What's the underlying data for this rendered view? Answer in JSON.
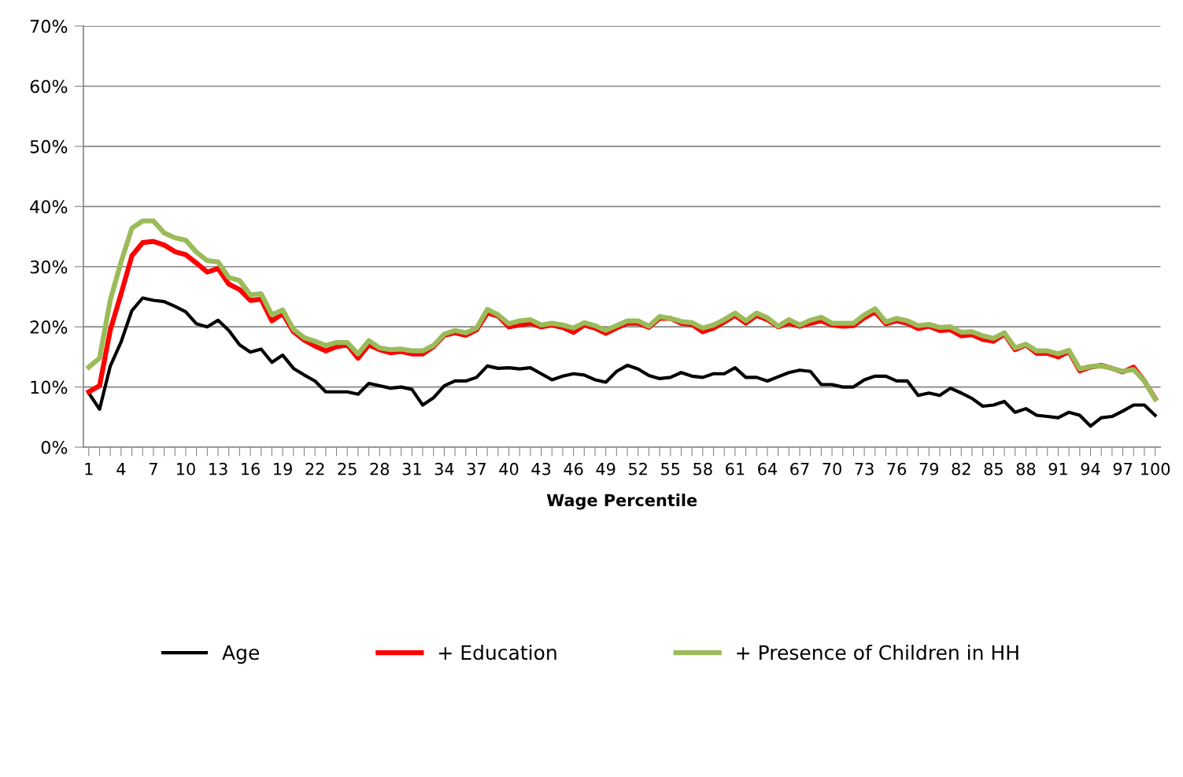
{
  "chart_data": {
    "type": "line",
    "xlabel": "Wage Percentile",
    "categories": [
      "1",
      null,
      null,
      "4",
      null,
      null,
      "7",
      null,
      null,
      "10",
      null,
      null,
      "13",
      null,
      null,
      "16",
      null,
      null,
      "19",
      null,
      null,
      "22",
      null,
      null,
      "25",
      null,
      null,
      "28",
      null,
      null,
      "31",
      null,
      null,
      "34",
      null,
      null,
      "37",
      null,
      null,
      "40",
      null,
      null,
      "43",
      null,
      null,
      "46",
      null,
      null,
      "49",
      null,
      null,
      "52",
      null,
      null,
      "55",
      null,
      null,
      "58",
      null,
      null,
      "61",
      null,
      null,
      "64",
      null,
      null,
      "67",
      null,
      null,
      "70",
      null,
      null,
      "73",
      null,
      null,
      "76",
      null,
      null,
      "79",
      null,
      null,
      "82",
      null,
      null,
      "85",
      null,
      null,
      "88",
      null,
      null,
      "91",
      null,
      null,
      "94",
      null,
      null,
      "97",
      null,
      null,
      "100"
    ],
    "series": [
      {
        "name": "Age",
        "color": "#000000",
        "values": [
          9,
          6.3,
          13.5,
          17.5,
          22.7,
          24.8,
          24.4,
          24.2,
          23.4,
          22.5,
          20.5,
          20,
          21.1,
          19.4,
          17,
          15.8,
          16.3,
          14.1,
          15.3,
          13.1,
          12,
          11,
          9.2,
          9.2,
          9.2,
          8.8,
          10.6,
          10.2,
          9.8,
          10,
          9.6,
          7,
          8.2,
          10.2,
          11,
          11,
          11.6,
          13.5,
          13.1,
          13.2,
          13,
          13.2,
          12.2,
          11.2,
          11.8,
          12.2,
          12,
          11.2,
          10.8,
          12.6,
          13.6,
          13,
          11.9,
          11.4,
          11.6,
          12.4,
          11.8,
          11.6,
          12.2,
          12.2,
          13.2,
          11.6,
          11.6,
          11,
          11.7,
          12.4,
          12.8,
          12.6,
          10.4,
          10.4,
          10,
          10,
          11.2,
          11.8,
          11.8,
          11,
          11,
          8.6,
          9,
          8.6,
          9.8,
          9,
          8.1,
          6.8,
          7,
          7.6,
          5.8,
          6.4,
          5.3,
          5.1,
          4.9,
          5.8,
          5.3,
          3.5,
          4.9,
          5.1,
          6,
          7,
          7,
          5.3
        ]
      },
      {
        "name": "+ Education",
        "color": "#ff0000",
        "values": [
          9.2,
          10.2,
          19.5,
          25.5,
          31.8,
          34,
          34.2,
          33.6,
          32.5,
          32,
          30.6,
          29.1,
          29.7,
          27.1,
          26.2,
          24.4,
          24.6,
          21,
          22.2,
          19.2,
          17.8,
          16.8,
          16,
          16.7,
          17,
          14.8,
          17,
          16.2,
          15.7,
          15.9,
          15.5,
          15.5,
          16.7,
          18.6,
          19,
          18.6,
          19.5,
          22.3,
          21.8,
          20,
          20.3,
          20.6,
          20,
          20.3,
          19.9,
          19.1,
          20.3,
          19.8,
          18.9,
          19.8,
          20.6,
          20.6,
          19.9,
          21.4,
          21.4,
          20.6,
          20.4,
          19.2,
          19.8,
          20.8,
          21.9,
          20.6,
          21.9,
          21.2,
          20,
          20.6,
          20.1,
          20.6,
          21,
          20.3,
          20.1,
          20.2,
          21.5,
          22.5,
          20.5,
          21,
          20.6,
          19.7,
          20.1,
          19.4,
          19.5,
          18.5,
          18.7,
          17.9,
          17.6,
          18.8,
          16.2,
          17,
          15.6,
          15.6,
          15,
          15.9,
          12.7,
          13.3,
          13.6,
          13.1,
          12.5,
          13.3,
          11,
          8.1
        ]
      },
      {
        "name": "+ Presence of Children in HH",
        "color": "#9bbb59",
        "values": [
          13.3,
          14.8,
          24.5,
          30.8,
          36.4,
          37.6,
          37.6,
          35.6,
          34.8,
          34.4,
          32.4,
          31,
          30.8,
          28.2,
          27.7,
          25.3,
          25.5,
          22,
          22.8,
          19.6,
          18.2,
          17.6,
          16.9,
          17.4,
          17.4,
          15.5,
          17.7,
          16.5,
          16.2,
          16.3,
          16,
          16,
          16.9,
          18.8,
          19.4,
          19,
          19.8,
          22.9,
          22,
          20.5,
          21,
          21.2,
          20.3,
          20.6,
          20.3,
          19.8,
          20.7,
          20.2,
          19.4,
          20.2,
          21,
          21,
          20.1,
          21.7,
          21.4,
          20.9,
          20.7,
          19.8,
          20.3,
          21.2,
          22.3,
          21,
          22.3,
          21.5,
          20.1,
          21.2,
          20.3,
          21.1,
          21.6,
          20.6,
          20.6,
          20.6,
          22,
          23,
          20.8,
          21.4,
          21,
          20.2,
          20.4,
          19.9,
          20,
          19.1,
          19.2,
          18.5,
          18.1,
          19,
          16.5,
          17.1,
          16,
          16,
          15.5,
          16.1,
          13,
          13.4,
          13.5,
          13.1,
          12.6,
          12.9,
          11,
          8
        ]
      }
    ],
    "ylim": [
      0,
      70
    ],
    "yticks": [
      {
        "value": 0,
        "label": "0%"
      },
      {
        "value": 10,
        "label": "10%"
      },
      {
        "value": 20,
        "label": "20%"
      },
      {
        "value": 30,
        "label": "30%"
      },
      {
        "value": 40,
        "label": "40%"
      },
      {
        "value": 50,
        "label": "50%"
      },
      {
        "value": 60,
        "label": "60%"
      },
      {
        "value": 70,
        "label": "70%"
      }
    ],
    "grid": "y",
    "legend": "bottom",
    "marker": "none",
    "line_style": "solid"
  }
}
